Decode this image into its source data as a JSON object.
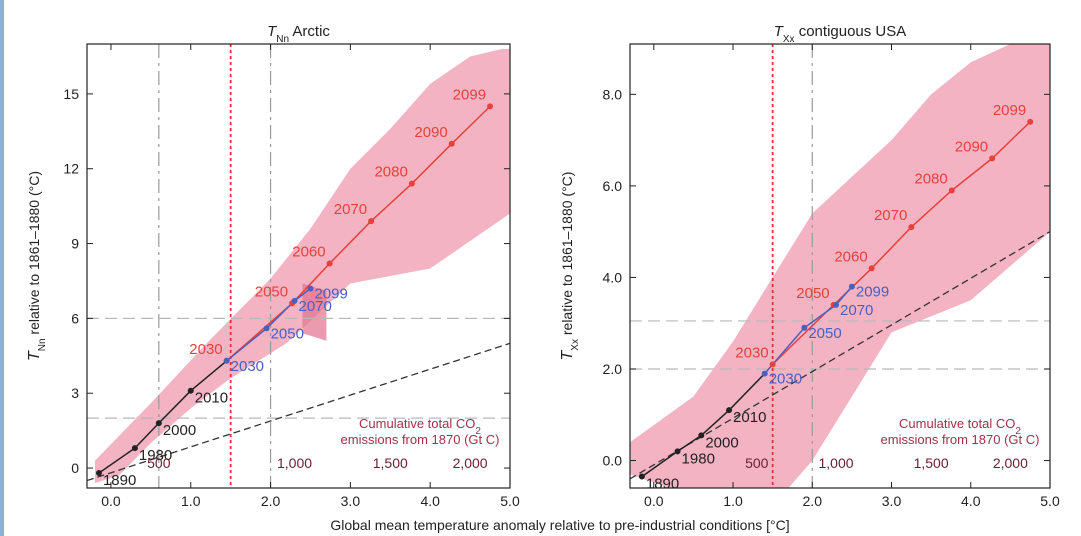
{
  "figure": {
    "x_axis_label": "Global mean temperature anomaly relative to pre-industrial conditions [°C]"
  },
  "chart_data": [
    {
      "type": "line",
      "title_main": "T",
      "title_sub": "Nn",
      "title_rest": " Arctic",
      "ylabel_main": "T",
      "ylabel_sub": "Nn",
      "ylabel_rest": " relative to 1861–1880 (°C)",
      "xlim": [
        -0.3,
        5.0
      ],
      "ylim": [
        -0.8,
        17.0
      ],
      "xticks": [
        0.0,
        1.0,
        2.0,
        3.0,
        4.0,
        5.0
      ],
      "xtick_labels": [
        "0.0",
        "1.0",
        "2.0",
        "3.0",
        "4.0",
        "5.0"
      ],
      "yticks": [
        0,
        3,
        6,
        9,
        12,
        15
      ],
      "ytick_labels": [
        "0",
        "3",
        "6",
        "9",
        "12",
        "15"
      ],
      "vlines_dash": [
        0.6,
        2.0
      ],
      "vline_red": 1.5,
      "hlines_dash": [
        2,
        6
      ],
      "ref_line": {
        "x": [
          -0.3,
          5.0
        ],
        "y": [
          -0.5,
          5.0
        ]
      },
      "band": {
        "upper": [
          [
            -0.2,
            0.3
          ],
          [
            0.5,
            2.6
          ],
          [
            1.2,
            5.0
          ],
          [
            2.0,
            7.6
          ],
          [
            2.5,
            9.6
          ],
          [
            3.0,
            12.0
          ],
          [
            3.5,
            13.6
          ],
          [
            4.0,
            15.4
          ],
          [
            4.5,
            16.5
          ],
          [
            4.9,
            16.8
          ],
          [
            5.0,
            16.8
          ]
        ],
        "lower": [
          [
            5.0,
            10.2
          ],
          [
            4.0,
            8.0
          ],
          [
            3.0,
            7.4
          ],
          [
            2.7,
            6.5
          ],
          [
            2.2,
            5.0
          ],
          [
            1.5,
            3.6
          ],
          [
            1.0,
            2.4
          ],
          [
            0.5,
            1.0
          ],
          [
            0.1,
            -0.3
          ],
          [
            -0.2,
            -0.6
          ]
        ]
      },
      "band_blue_end": {
        "upper": [
          [
            2.4,
            7.4
          ],
          [
            2.7,
            7.1
          ]
        ],
        "lower": [
          [
            2.7,
            5.1
          ],
          [
            2.4,
            5.4
          ]
        ]
      },
      "series": [
        {
          "name": "",
          "color": "#e8403a",
          "x": [
            1.45,
            2.27,
            2.74,
            3.26,
            3.77,
            4.27,
            4.75
          ],
          "y": [
            4.3,
            6.6,
            8.2,
            9.9,
            11.4,
            13.0,
            14.5
          ],
          "labels": [
            "2030",
            "2050",
            "2060",
            "2070",
            "2080",
            "2090",
            "2099"
          ]
        },
        {
          "name": "",
          "color": "#4a60c0",
          "x": [
            1.45,
            1.95,
            2.3,
            2.5
          ],
          "y": [
            4.3,
            5.6,
            6.7,
            7.2
          ],
          "labels": [
            "2030",
            "2050",
            "2070",
            "2099"
          ]
        },
        {
          "name": "",
          "color": "#222222",
          "x": [
            -0.15,
            0.3,
            0.6,
            1.0
          ],
          "y": [
            -0.2,
            0.8,
            1.8,
            3.1
          ],
          "labels": [
            "1890",
            "1980",
            "2000",
            "2010"
          ]
        }
      ],
      "co2_axis": {
        "title_line1": "Cumulative total CO",
        "title_sub": "2",
        "title_line2": "emissions from 1870 (Gt C)",
        "x": [
          0.6,
          2.3,
          3.5,
          4.5
        ],
        "labels": [
          "500",
          "1,000",
          "1,500",
          "2,000"
        ]
      }
    },
    {
      "type": "line",
      "title_main": "T",
      "title_sub": "Xx",
      "title_rest": " contiguous USA",
      "ylabel_main": "T",
      "ylabel_sub": "Xx",
      "ylabel_rest": " relative to 1861–1880 (°C)",
      "xlim": [
        -0.3,
        5.0
      ],
      "ylim": [
        -0.6,
        9.1
      ],
      "xticks": [
        0.0,
        1.0,
        2.0,
        3.0,
        4.0,
        5.0
      ],
      "xtick_labels": [
        "0.0",
        "1.0",
        "2.0",
        "3.0",
        "4.0",
        "5.0"
      ],
      "yticks": [
        0.0,
        2.0,
        4.0,
        6.0,
        8.0
      ],
      "ytick_labels": [
        "0.0",
        "2.0",
        "4.0",
        "6.0",
        "8.0"
      ],
      "vlines_dash": [
        2.0
      ],
      "vline_red": 1.5,
      "hlines_dash": [
        2.0,
        3.05
      ],
      "ref_line": {
        "x": [
          -0.3,
          5.0
        ],
        "y": [
          -0.4,
          5.0
        ]
      },
      "band": {
        "upper": [
          [
            -0.3,
            0.4
          ],
          [
            0.5,
            1.4
          ],
          [
            1.0,
            2.6
          ],
          [
            1.5,
            4.0
          ],
          [
            2.0,
            5.4
          ],
          [
            2.5,
            6.2
          ],
          [
            3.0,
            7.0
          ],
          [
            3.5,
            8.0
          ],
          [
            4.0,
            8.7
          ],
          [
            4.5,
            9.1
          ],
          [
            5.0,
            9.1
          ]
        ],
        "lower": [
          [
            5.0,
            5.0
          ],
          [
            4.0,
            3.5
          ],
          [
            3.0,
            2.8
          ],
          [
            2.5,
            1.4
          ],
          [
            2.0,
            0.0
          ],
          [
            1.7,
            -0.6
          ],
          [
            0.8,
            -0.6
          ],
          [
            0.2,
            -0.6
          ],
          [
            -0.3,
            -0.3
          ]
        ]
      },
      "series": [
        {
          "name": "",
          "color": "#e8403a",
          "x": [
            1.5,
            2.27,
            2.75,
            3.25,
            3.76,
            4.27,
            4.75
          ],
          "y": [
            2.1,
            3.4,
            4.2,
            5.1,
            5.9,
            6.6,
            7.4
          ],
          "labels": [
            "2030",
            "2050",
            "2060",
            "2070",
            "2080",
            "2090",
            "2099"
          ]
        },
        {
          "name": "",
          "color": "#4a60c0",
          "x": [
            1.4,
            1.9,
            2.3,
            2.5
          ],
          "y": [
            1.9,
            2.9,
            3.4,
            3.8
          ],
          "labels": [
            "2030",
            "2050",
            "2070",
            "2099"
          ]
        },
        {
          "name": "",
          "color": "#222222",
          "x": [
            -0.15,
            0.3,
            0.6,
            0.95
          ],
          "y": [
            -0.35,
            0.2,
            0.55,
            1.1
          ],
          "labels": [
            "1890",
            "1980",
            "2000",
            "2010"
          ]
        }
      ],
      "co2_axis": {
        "title_line1": "Cumulative total CO",
        "title_sub": "2",
        "title_line2": "emissions from 1870 (Gt C)",
        "x": [
          1.3,
          2.3,
          3.5,
          4.5
        ],
        "labels": [
          "500",
          "1,000",
          "1,500",
          "2,000"
        ]
      }
    }
  ]
}
